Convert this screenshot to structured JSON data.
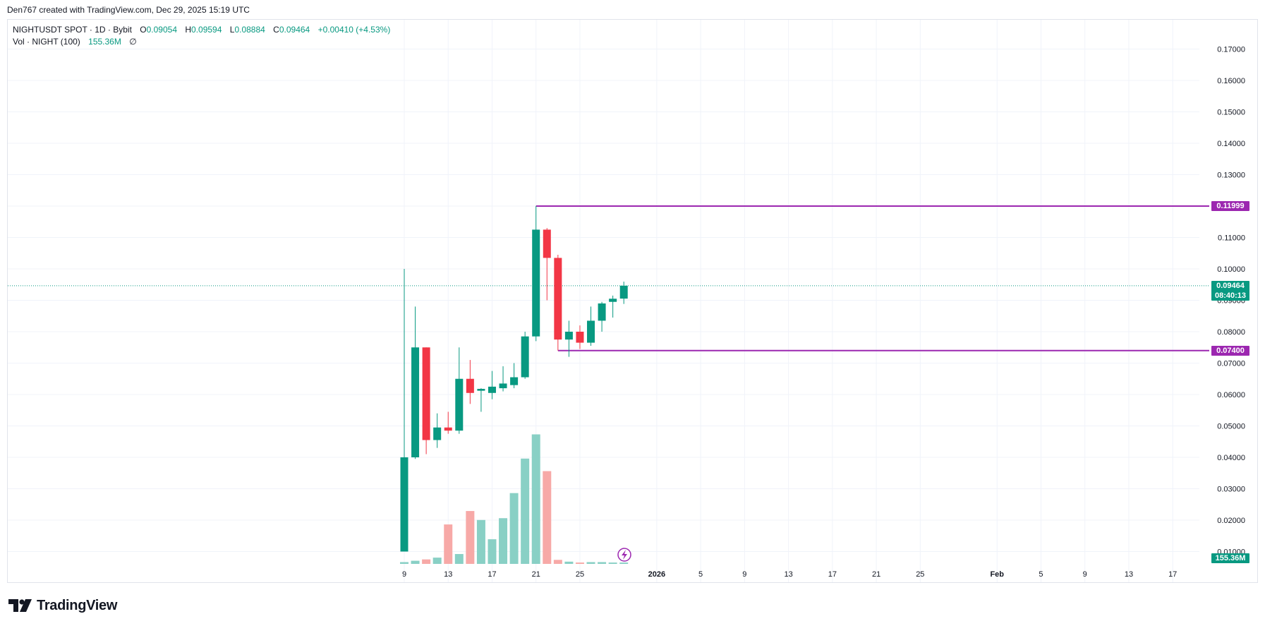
{
  "credit": "Den767 created with TradingView.com, Dec 29, 2025 15:19 UTC",
  "legend": {
    "symbol": "NIGHTUSDT SPOT · 1D · Bybit",
    "o_label": "O",
    "o_value": "0.09054",
    "h_label": "H",
    "h_value": "0.09594",
    "l_label": "L",
    "l_value": "0.08884",
    "c_label": "C",
    "c_value": "0.09464",
    "change": "+0.00410 (+4.53%)",
    "vol_label": "Vol · NIGHT (100)",
    "vol_value": "155.36M",
    "vol_icon": "∅"
  },
  "tags": {
    "resistance": "0.11999",
    "support": "0.07400",
    "last_price": "0.09464",
    "countdown": "08:40:13",
    "last_volume": "155.36M"
  },
  "brand": {
    "name": "TradingView",
    "icon": "tradingview-logo-icon"
  },
  "colors": {
    "up": "#089981",
    "down": "#f23645",
    "vol_up": "#89d0c5",
    "vol_down": "#f7a9a7",
    "level": "#9c27b0",
    "grid": "#f0f3fa"
  },
  "chart_data": {
    "type": "candlestick",
    "symbol": "NIGHTUSDT SPOT",
    "interval": "1D",
    "exchange": "Bybit",
    "x_ticks": [
      {
        "day": 9,
        "label": "9"
      },
      {
        "day": 13,
        "label": "13"
      },
      {
        "day": 17,
        "label": "17"
      },
      {
        "day": 21,
        "label": "21"
      },
      {
        "day": 25,
        "label": "25"
      },
      {
        "day": 32,
        "label": "2026"
      },
      {
        "day": 36,
        "label": "5"
      },
      {
        "day": 40,
        "label": "9"
      },
      {
        "day": 44,
        "label": "13"
      },
      {
        "day": 48,
        "label": "17"
      },
      {
        "day": 52,
        "label": "21"
      },
      {
        "day": 56,
        "label": "25"
      },
      {
        "day": 63,
        "label": "Feb"
      },
      {
        "day": 67,
        "label": "5"
      },
      {
        "day": 71,
        "label": "9"
      },
      {
        "day": 75,
        "label": "13"
      },
      {
        "day": 79,
        "label": "17"
      }
    ],
    "y_ticks": [
      "0.01000",
      "0.02000",
      "0.03000",
      "0.04000",
      "0.05000",
      "0.06000",
      "0.07000",
      "0.08000",
      "0.09000",
      "0.10000",
      "0.11000",
      "0.12000",
      "0.13000",
      "0.14000",
      "0.15000",
      "0.16000",
      "0.17000"
    ],
    "ylim": [
      0.0055,
      0.1775
    ],
    "candles": [
      {
        "date": "Dec 9",
        "open": 0.01,
        "high": 0.1,
        "low": 0.01,
        "close": 0.04,
        "volume": 0.4
      },
      {
        "date": "Dec 10",
        "open": 0.04,
        "high": 0.088,
        "low": 0.0395,
        "close": 0.075,
        "volume": 0.7
      },
      {
        "date": "Dec 11",
        "open": 0.075,
        "high": 0.075,
        "low": 0.041,
        "close": 0.0455,
        "volume": 1.0
      },
      {
        "date": "Dec 12",
        "open": 0.0455,
        "high": 0.054,
        "low": 0.043,
        "close": 0.0495,
        "volume": 1.4
      },
      {
        "date": "Dec 13",
        "open": 0.0495,
        "high": 0.0545,
        "low": 0.0475,
        "close": 0.0485,
        "volume": 8.8
      },
      {
        "date": "Dec 14",
        "open": 0.0485,
        "high": 0.075,
        "low": 0.0475,
        "close": 0.065,
        "volume": 2.2
      },
      {
        "date": "Dec 15",
        "open": 0.065,
        "high": 0.071,
        "low": 0.057,
        "close": 0.0605,
        "volume": 11.8
      },
      {
        "date": "Dec 16",
        "open": 0.0612,
        "high": 0.062,
        "low": 0.0545,
        "close": 0.0618,
        "volume": 9.8
      },
      {
        "date": "Dec 17",
        "open": 0.0605,
        "high": 0.0675,
        "low": 0.0585,
        "close": 0.0625,
        "volume": 5.5
      },
      {
        "date": "Dec 18",
        "open": 0.062,
        "high": 0.069,
        "low": 0.061,
        "close": 0.0635,
        "volume": 10.2
      },
      {
        "date": "Dec 19",
        "open": 0.063,
        "high": 0.07,
        "low": 0.062,
        "close": 0.0655,
        "volume": 15.8
      },
      {
        "date": "Dec 20",
        "open": 0.0655,
        "high": 0.08,
        "low": 0.065,
        "close": 0.0785,
        "volume": 23.5
      },
      {
        "date": "Dec 21",
        "open": 0.0785,
        "high": 0.12,
        "low": 0.077,
        "close": 0.1125,
        "volume": 28.9
      },
      {
        "date": "Dec 22",
        "open": 0.1125,
        "high": 0.113,
        "low": 0.09,
        "close": 0.1035,
        "volume": 20.7
      },
      {
        "date": "Dec 23",
        "open": 0.1035,
        "high": 0.1045,
        "low": 0.074,
        "close": 0.0775,
        "volume": 0.9
      },
      {
        "date": "Dec 24",
        "open": 0.0775,
        "high": 0.0835,
        "low": 0.072,
        "close": 0.08,
        "volume": 0.5
      },
      {
        "date": "Dec 25",
        "open": 0.08,
        "high": 0.082,
        "low": 0.0745,
        "close": 0.0765,
        "volume": 0.3
      },
      {
        "date": "Dec 26",
        "open": 0.0765,
        "high": 0.088,
        "low": 0.0755,
        "close": 0.0835,
        "volume": 0.4
      },
      {
        "date": "Dec 27",
        "open": 0.0835,
        "high": 0.0895,
        "low": 0.08,
        "close": 0.089,
        "volume": 0.4
      },
      {
        "date": "Dec 28",
        "open": 0.0895,
        "high": 0.0915,
        "low": 0.0845,
        "close": 0.0905,
        "volume": 0.3
      },
      {
        "date": "Dec 29",
        "open": 0.09054,
        "high": 0.09594,
        "low": 0.08884,
        "close": 0.09464,
        "volume": 0.3
      }
    ],
    "horizontal_levels": [
      {
        "price": 0.11999,
        "from_date": "Dec 21"
      },
      {
        "price": 0.074,
        "from_date": "Dec 23"
      }
    ],
    "last_price": 0.09464,
    "grid": true,
    "price_axis": "right",
    "legend_position": "top-left"
  }
}
